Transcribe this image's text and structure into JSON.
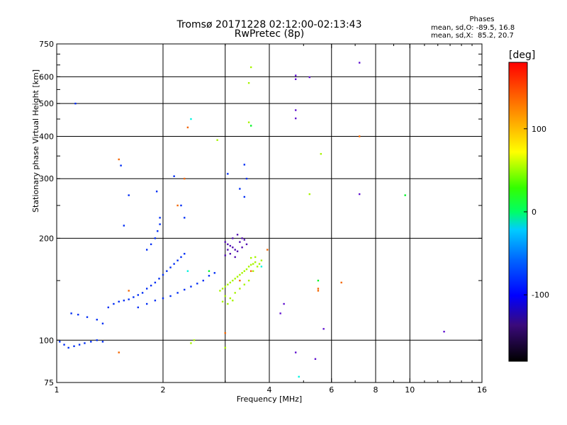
{
  "header": {
    "title_line1": "Tromsø 20171228 02:12:00-02:13:43",
    "title_line2": "RwPretec (8p)",
    "legend_title": "Phases",
    "legend_line1": "mean, sd,O: -89.5, 16.8",
    "legend_line2": "mean, sd,X:  85.2, 20.7"
  },
  "colorbar": {
    "unit": "[deg]",
    "ticks": [
      {
        "value": 100,
        "label": "100"
      },
      {
        "value": 0,
        "label": "0"
      },
      {
        "value": -100,
        "label": "-100"
      }
    ],
    "range": [
      -180,
      180
    ]
  },
  "chart_data": {
    "type": "scatter",
    "title": "Tromsø 20171228 02:12:00-02:13:43",
    "subtitle": "RwPretec (8p)",
    "xlabel": "Frequency [MHz]",
    "ylabel": "Stationary phase Virtual Height [km]",
    "xscale": "log",
    "yscale": "log",
    "xlim": [
      1,
      16
    ],
    "ylim": [
      75,
      750
    ],
    "x_ticks": [
      {
        "value": 1,
        "label": "1"
      },
      {
        "value": 2,
        "label": "2"
      },
      {
        "value": 4,
        "label": "4"
      },
      {
        "value": 6,
        "label": "6"
      },
      {
        "value": 8,
        "label": "8"
      },
      {
        "value": 10,
        "label": "10"
      },
      {
        "value": 16,
        "label": "16"
      }
    ],
    "x_grid": [
      2,
      3,
      4,
      6,
      8,
      10
    ],
    "y_ticks": [
      {
        "value": 75,
        "label": "75"
      },
      {
        "value": 100,
        "label": "100"
      },
      {
        "value": 200,
        "label": "200"
      },
      {
        "value": 300,
        "label": "300"
      },
      {
        "value": 400,
        "label": "400"
      },
      {
        "value": 500,
        "label": "500"
      },
      {
        "value": 600,
        "label": "600"
      },
      {
        "value": 750,
        "label": "750"
      }
    ],
    "y_grid": [
      100,
      200,
      300,
      400,
      500,
      600
    ],
    "color_by": "phase [deg]",
    "series": [
      {
        "name": "O-mode trace (phase ~ -90 deg)",
        "phase": -95,
        "points": [
          [
            1.02,
            99
          ],
          [
            1.05,
            97
          ],
          [
            1.08,
            95
          ],
          [
            1.12,
            96
          ],
          [
            1.16,
            97
          ],
          [
            1.2,
            98
          ],
          [
            1.25,
            99
          ],
          [
            1.3,
            100
          ],
          [
            1.35,
            99
          ],
          [
            1.1,
            120
          ],
          [
            1.15,
            119
          ],
          [
            1.22,
            117
          ],
          [
            1.3,
            115
          ],
          [
            1.35,
            112
          ],
          [
            1.4,
            125
          ],
          [
            1.45,
            128
          ],
          [
            1.5,
            130
          ],
          [
            1.55,
            131
          ],
          [
            1.6,
            132
          ],
          [
            1.65,
            134
          ],
          [
            1.7,
            136
          ],
          [
            1.75,
            138
          ],
          [
            1.8,
            142
          ],
          [
            1.85,
            145
          ],
          [
            1.9,
            148
          ],
          [
            1.95,
            152
          ],
          [
            2.0,
            156
          ],
          [
            2.05,
            160
          ],
          [
            2.1,
            164
          ],
          [
            2.15,
            168
          ],
          [
            2.2,
            172
          ],
          [
            2.25,
            176
          ],
          [
            2.3,
            180
          ],
          [
            1.7,
            125
          ],
          [
            1.8,
            128
          ],
          [
            1.9,
            131
          ],
          [
            2.0,
            133
          ],
          [
            2.1,
            135
          ],
          [
            2.2,
            138
          ],
          [
            2.3,
            141
          ],
          [
            2.4,
            144
          ],
          [
            2.5,
            147
          ],
          [
            2.6,
            150
          ],
          [
            2.7,
            155
          ],
          [
            2.8,
            158
          ],
          [
            1.8,
            185
          ],
          [
            1.85,
            192
          ],
          [
            1.9,
            200
          ],
          [
            1.93,
            210
          ],
          [
            1.96,
            220
          ],
          [
            1.96,
            230
          ],
          [
            1.92,
            275
          ],
          [
            1.6,
            268
          ],
          [
            1.55,
            218
          ],
          [
            1.52,
            328
          ],
          [
            1.13,
            500
          ],
          [
            3.05,
            310
          ],
          [
            3.4,
            330
          ],
          [
            3.45,
            300
          ],
          [
            3.3,
            280
          ],
          [
            3.4,
            265
          ],
          [
            2.15,
            305
          ],
          [
            2.25,
            250
          ],
          [
            2.3,
            230
          ]
        ]
      },
      {
        "name": "O-mode upper (phase ~ -120 deg)",
        "phase": -125,
        "points": [
          [
            3.0,
            195
          ],
          [
            3.05,
            192
          ],
          [
            3.1,
            190
          ],
          [
            3.15,
            188
          ],
          [
            3.2,
            185
          ],
          [
            3.25,
            183
          ],
          [
            3.0,
            178
          ],
          [
            3.1,
            180
          ],
          [
            3.2,
            176
          ],
          [
            3.3,
            195
          ],
          [
            3.35,
            200
          ],
          [
            3.4,
            198
          ],
          [
            3.45,
            192
          ],
          [
            3.15,
            200
          ],
          [
            3.25,
            205
          ],
          [
            3.35,
            188
          ],
          [
            3.05,
            185
          ]
        ]
      },
      {
        "name": "X-mode trace (phase ~ +85 deg)",
        "phase": 85,
        "points": [
          [
            2.9,
            140
          ],
          [
            2.95,
            142
          ],
          [
            3.0,
            144
          ],
          [
            3.05,
            146
          ],
          [
            3.1,
            148
          ],
          [
            3.15,
            150
          ],
          [
            3.2,
            152
          ],
          [
            3.25,
            154
          ],
          [
            3.3,
            156
          ],
          [
            3.35,
            158
          ],
          [
            3.4,
            160
          ],
          [
            3.45,
            162
          ],
          [
            3.5,
            165
          ],
          [
            3.55,
            167
          ],
          [
            3.6,
            168
          ],
          [
            3.65,
            170
          ],
          [
            3.0,
            135
          ],
          [
            3.1,
            133
          ],
          [
            3.2,
            138
          ],
          [
            3.3,
            142
          ],
          [
            3.4,
            146
          ],
          [
            3.5,
            150
          ],
          [
            2.95,
            130
          ],
          [
            3.05,
            128
          ],
          [
            3.15,
            131
          ],
          [
            3.6,
            160
          ],
          [
            3.7,
            165
          ],
          [
            3.75,
            168
          ],
          [
            3.8,
            172
          ],
          [
            3.65,
            176
          ],
          [
            3.55,
            175
          ],
          [
            2.4,
            98
          ],
          [
            2.45,
            100
          ],
          [
            3.0,
            95
          ],
          [
            3.55,
            640
          ],
          [
            3.5,
            575
          ],
          [
            3.5,
            440
          ],
          [
            2.85,
            390
          ],
          [
            5.6,
            355
          ],
          [
            5.2,
            270
          ]
        ]
      },
      {
        "name": "Scattered echoes",
        "phase": -110,
        "points": [
          [
            4.75,
            605
          ],
          [
            5.2,
            598
          ],
          [
            4.75,
            590
          ],
          [
            4.75,
            478
          ],
          [
            4.75,
            452
          ],
          [
            7.2,
            660
          ],
          [
            7.2,
            270
          ],
          [
            5.7,
            108
          ],
          [
            4.4,
            128
          ],
          [
            4.75,
            92
          ],
          [
            5.4,
            88
          ],
          [
            12.5,
            106
          ],
          [
            4.3,
            120
          ]
        ]
      },
      {
        "name": "Isolated echoes (phase ~ +150 deg)",
        "phase": 150,
        "points": [
          [
            1.5,
            342
          ],
          [
            1.6,
            140
          ],
          [
            2.35,
            425
          ],
          [
            2.2,
            250
          ],
          [
            2.3,
            300
          ],
          [
            3.55,
            160
          ],
          [
            3.3,
            150
          ],
          [
            6.4,
            148
          ],
          [
            5.5,
            140
          ],
          [
            5.5,
            142
          ],
          [
            7.2,
            400
          ],
          [
            3.95,
            185
          ],
          [
            3.0,
            105
          ],
          [
            1.5,
            92
          ]
        ]
      },
      {
        "name": "Isolated echoes (phase ~ +20 deg)",
        "phase": 25,
        "points": [
          [
            9.7,
            268
          ],
          [
            3.55,
            430
          ],
          [
            5.5,
            150
          ],
          [
            2.7,
            160
          ]
        ]
      },
      {
        "name": "Isolated echoes (phase ~ -30 deg)",
        "phase": -30,
        "points": [
          [
            2.4,
            450
          ],
          [
            2.35,
            160
          ],
          [
            4.85,
            78
          ],
          [
            3.8,
            165
          ]
        ]
      }
    ]
  }
}
